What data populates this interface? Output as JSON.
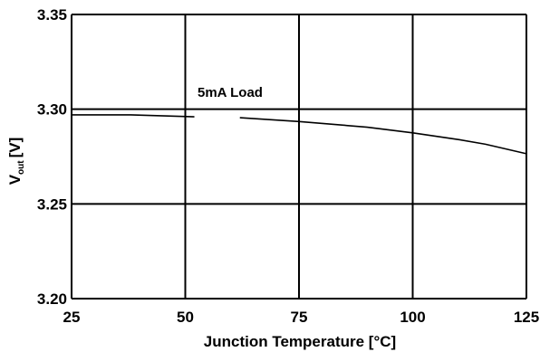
{
  "chart_data": {
    "type": "line",
    "title": "",
    "xlabel": "Junction Temperature [°C]",
    "ylabel": "V",
    "ylabel_subscript": "out",
    "ylabel_unit": "[V]",
    "xlim": [
      25,
      125
    ],
    "ylim": [
      3.2,
      3.35
    ],
    "x_ticks": [
      25,
      50,
      75,
      100,
      125
    ],
    "x_tick_labels": [
      "25",
      "50",
      "75",
      "100",
      "125"
    ],
    "y_ticks": [
      3.2,
      3.25,
      3.3,
      3.35
    ],
    "y_tick_labels": [
      "3.20",
      "3.25",
      "3.30",
      "3.35"
    ],
    "grid": true,
    "annotation": "5mA Load",
    "series": [
      {
        "x": [
          25,
          38,
          52,
          62,
          75,
          90,
          100,
          110,
          116,
          125
        ],
        "y": [
          3.297,
          3.297,
          3.296,
          3.2955,
          3.2935,
          3.2905,
          3.2875,
          3.284,
          3.2815,
          3.2765
        ]
      }
    ]
  }
}
